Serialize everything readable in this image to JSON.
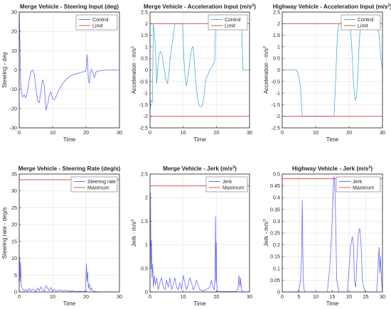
{
  "chart_data": [
    {
      "type": "line",
      "title": "Merge Vehicle - Steering Input (deg)",
      "xlabel": "Time",
      "ylabel": "Steering - deg",
      "xlim": [
        0,
        30
      ],
      "ylim": [
        -30,
        30
      ],
      "xticks": [
        0,
        10,
        20,
        30
      ],
      "yticks": [
        -30,
        -20,
        -10,
        0,
        10,
        20,
        30
      ],
      "grid": true,
      "legend": "top-right",
      "series": [
        {
          "name": "Control",
          "color": "#6a6aff",
          "x": [
            0,
            0.05,
            0.2,
            0.4,
            0.7,
            1.0,
            1.5,
            2.0,
            2.5,
            3.0,
            3.5,
            4.0,
            4.5,
            5.0,
            5.5,
            6.0,
            6.5,
            7.0,
            7.5,
            8.0,
            8.5,
            9.0,
            9.5,
            10.0,
            10.5,
            11.0,
            12.0,
            13.0,
            14.0,
            15.0,
            16.0,
            17.0,
            18.0,
            19.0,
            19.8,
            20.1,
            20.3,
            20.5,
            20.7,
            21.0,
            21.3,
            21.6,
            22.0,
            22.5,
            23.0,
            24.0,
            26.0,
            28.0,
            30.0
          ],
          "y": [
            30,
            29,
            15,
            -5,
            -12,
            -14,
            -13,
            -14.5,
            -11,
            -5,
            -1,
            0,
            -2,
            -9,
            -16,
            -17,
            -11,
            -5,
            -8,
            -21,
            -18,
            -13,
            -11.5,
            -15,
            -15.5,
            -14,
            -10,
            -7,
            -5,
            -3.5,
            -2.5,
            -2,
            -1.5,
            -1,
            -0.7,
            1,
            8,
            3,
            -5,
            -7,
            -1,
            0.3,
            -1,
            -4,
            -1,
            -0.4,
            -0.1,
            0,
            0
          ]
        },
        {
          "name": "Limit",
          "color": "#e05050",
          "x": [
            0,
            30
          ],
          "y": [
            30,
            30
          ]
        },
        {
          "name": "",
          "color": "#e05050",
          "x": [
            0,
            30
          ],
          "y": [
            -30,
            -30
          ]
        }
      ]
    },
    {
      "type": "line",
      "title": "Merge Vehicle - Acceleration Input (m/s",
      "title_sup": "2",
      "title_end": ")",
      "xlabel": "Time",
      "ylabel": "Acceleration - m/s",
      "ylabel_sup": "2",
      "xlim": [
        0,
        30
      ],
      "ylim": [
        -2.5,
        2.5
      ],
      "xticks": [
        0,
        10,
        20,
        30
      ],
      "yticks": [
        -2.5,
        -2,
        -1.5,
        -1,
        -0.5,
        0,
        0.5,
        1,
        1.5,
        2,
        2.5
      ],
      "grid": true,
      "legend": "top-right",
      "series": [
        {
          "name": "Control",
          "color": "#4aaed6",
          "x": [
            0,
            0.3,
            0.7,
            1.0,
            1.3,
            1.6,
            2.0,
            2.4,
            2.8,
            3.2,
            3.7,
            4.3,
            4.8,
            5.3,
            5.8,
            6.2,
            6.8,
            7.5,
            8.2,
            9.0,
            9.8,
            10.2,
            10.6,
            11.0,
            11.5,
            12.0,
            12.5,
            13.0,
            13.4,
            13.8,
            14.3,
            14.8,
            15.3,
            15.7,
            16.1,
            16.5,
            17.0,
            17.5,
            18.0,
            18.5,
            19.0,
            19.5,
            19.8,
            20.1,
            20.4,
            20.8,
            21.2,
            21.6,
            22.0,
            22.5,
            23.0,
            24.0,
            25.0,
            26.0,
            26.5,
            27.0,
            27.6,
            28.0,
            28.5,
            29.0,
            30.0
          ],
          "y": [
            -1.75,
            -1.3,
            -1.4,
            2.0,
            1.6,
            1.0,
            -0.6,
            0.2,
            0.7,
            0.8,
            0.6,
            0.0,
            -0.4,
            -0.6,
            0.0,
            0.7,
            1.2,
            2.0,
            2.0,
            2.0,
            2.0,
            0.5,
            -0.3,
            -0.7,
            -0.2,
            0.4,
            0.9,
            1.0,
            0.3,
            -0.5,
            -1.2,
            -1.55,
            -1.6,
            -1.55,
            -1.3,
            -0.8,
            -0.3,
            -0.2,
            0.0,
            0.1,
            0.2,
            0.4,
            2.0,
            2.0,
            2.0,
            2.0,
            2.0,
            2.0,
            2.0,
            2.0,
            2.0,
            2.0,
            2.0,
            2.0,
            2.0,
            2.0,
            2.0,
            0.0,
            0.0,
            0.0,
            0.0
          ]
        },
        {
          "name": "Limit",
          "color": "#e05050",
          "x": [
            0,
            30
          ],
          "y": [
            2,
            2
          ]
        },
        {
          "name": "",
          "color": "#e05050",
          "x": [
            0,
            30
          ],
          "y": [
            -2,
            -2
          ]
        }
      ]
    },
    {
      "type": "line",
      "title": "Highway Vehicle - Acceleration Input (m/s",
      "title_sup": "2",
      "title_end": ")",
      "xlabel": "Time",
      "ylabel": "Acceleration - m/s",
      "ylabel_sup": "2",
      "xlim": [
        0,
        30
      ],
      "ylim": [
        -2.5,
        2.5
      ],
      "xticks": [
        0,
        10,
        20,
        30
      ],
      "yticks": [
        -2.5,
        -2,
        -1.5,
        -1,
        -0.5,
        0,
        0.5,
        1,
        1.5,
        2,
        2.5
      ],
      "grid": true,
      "legend": "top-right",
      "series": [
        {
          "name": "Control",
          "color": "#4aaed6",
          "x": [
            0,
            4.0,
            4.5,
            5.0,
            5.5,
            6.0,
            6.5,
            15.5,
            16.0,
            16.5,
            17.0,
            18.5,
            19.5,
            20.3,
            20.8,
            21.3,
            21.8,
            22.2,
            22.6,
            23.0,
            23.4,
            24.0,
            26.0,
            26.5,
            27.0,
            28.0,
            28.5,
            29.0,
            29.5,
            30.0
          ],
          "y": [
            0.0,
            0.0,
            -0.05,
            -0.3,
            -0.8,
            -2.0,
            -2.0,
            -2.0,
            -0.4,
            1.5,
            2.0,
            2.0,
            2.0,
            2.0,
            1.0,
            -0.5,
            -1.3,
            -1.2,
            -0.3,
            1.0,
            2.0,
            2.0,
            2.0,
            2.0,
            2.0,
            2.0,
            2.0,
            1.5,
            0.5,
            0.0
          ]
        },
        {
          "name": "Limit",
          "color": "#e05050",
          "x": [
            0,
            30
          ],
          "y": [
            2,
            2
          ]
        },
        {
          "name": "",
          "color": "#e05050",
          "x": [
            0,
            30
          ],
          "y": [
            -2,
            -2
          ]
        }
      ]
    },
    {
      "type": "line",
      "title": "Merge Vehicle - Steering Rate (deg/s)",
      "xlabel": "Time",
      "ylabel": "Steering rate - deg/s",
      "xlim": [
        0,
        30
      ],
      "ylim": [
        0,
        35
      ],
      "xticks": [
        0,
        10,
        20,
        30
      ],
      "yticks": [
        0,
        5,
        10,
        15,
        20,
        25,
        30,
        35
      ],
      "grid": true,
      "legend": "top-right",
      "series": [
        {
          "name": "Steering rate",
          "color": "#6a6aff",
          "x": [
            0,
            0.1,
            0.25,
            0.4,
            0.6,
            0.9,
            1.2,
            1.6,
            2.0,
            2.5,
            3.0,
            3.5,
            4.0,
            4.5,
            5.0,
            5.5,
            6.0,
            6.5,
            7.0,
            7.5,
            8.0,
            8.5,
            9.0,
            9.5,
            10.0,
            10.5,
            11.0,
            12.0,
            13.0,
            14.0,
            15.0,
            16.0,
            17.0,
            18.0,
            19.0,
            19.8,
            20.1,
            20.3,
            20.5,
            20.7,
            21.0,
            21.3,
            21.6,
            22.0,
            22.5,
            23.0,
            24.0,
            26.0,
            28.0,
            30.0
          ],
          "y": [
            0,
            10.5,
            3,
            9,
            2,
            1,
            0.8,
            0.3,
            0.8,
            0.2,
            1.0,
            0.3,
            0.8,
            0.6,
            0.2,
            1.2,
            0.4,
            1.5,
            0.6,
            0.2,
            1.8,
            1.2,
            0.4,
            1.3,
            0.3,
            0.8,
            0.3,
            0.6,
            0.3,
            0.5,
            0.2,
            0.3,
            0.1,
            0.2,
            0.1,
            0.2,
            8.5,
            3,
            6,
            1,
            2.5,
            0.4,
            1.2,
            0.3,
            0.2,
            0.1,
            0.05,
            0.02,
            0.01,
            0
          ]
        },
        {
          "name": "Maximum",
          "color": "#e05050",
          "x": [
            0,
            30
          ],
          "y": [
            33.3,
            33.3
          ]
        }
      ]
    },
    {
      "type": "line",
      "title": "Merge Vehicle - Jerk (m/s",
      "title_sup": "3",
      "title_end": ")",
      "xlabel": "Time",
      "ylabel": "Jerk - m/s",
      "ylabel_sup": "3",
      "xlim": [
        0,
        30
      ],
      "ylim": [
        0,
        2.5
      ],
      "xticks": [
        0,
        10,
        20,
        30
      ],
      "yticks": [
        0,
        0.5,
        1,
        1.5,
        2,
        2.5
      ],
      "grid": true,
      "legend": "top-right",
      "series": [
        {
          "name": "Jerk",
          "color": "#6a6aff",
          "x": [
            0,
            0.15,
            0.3,
            0.45,
            0.6,
            0.8,
            1.0,
            1.3,
            1.6,
            2.0,
            2.5,
            3.0,
            3.5,
            4.0,
            4.5,
            5.0,
            5.5,
            6.0,
            6.5,
            7.0,
            7.5,
            8.0,
            8.5,
            9.0,
            9.5,
            10.0,
            10.5,
            11.0,
            11.5,
            12.0,
            12.5,
            13.0,
            13.5,
            14.0,
            14.5,
            15.0,
            16.0,
            17.0,
            18.0,
            18.5,
            19.0,
            19.4,
            19.6,
            19.75,
            19.9,
            20.0,
            20.1,
            20.3,
            20.6,
            21.0,
            22.0,
            23.0,
            24.0,
            25.0,
            26.0,
            26.5,
            26.8,
            27.1,
            27.3,
            27.6,
            28.0,
            29.0,
            30.0
          ],
          "y": [
            0,
            2.1,
            0.5,
            1.1,
            0.3,
            0.6,
            0.1,
            0.35,
            0.15,
            0.3,
            0.05,
            0.2,
            0.3,
            0.1,
            0.05,
            0.25,
            0.1,
            0.3,
            0.05,
            0.15,
            0.3,
            0.1,
            0.05,
            0.2,
            0.05,
            0.35,
            0.2,
            0.05,
            0.15,
            0.3,
            0.2,
            0.05,
            0.1,
            0.25,
            0.15,
            0.05,
            0.02,
            0.05,
            0.1,
            0.25,
            0.1,
            0.05,
            0.3,
            1.6,
            0.2,
            1.05,
            0.2,
            0.02,
            0.01,
            0.01,
            0.01,
            0.01,
            0.01,
            0.01,
            0.01,
            0.05,
            0.35,
            0.1,
            0.3,
            0.02,
            0.01,
            0.0,
            0.0
          ]
        },
        {
          "name": "Maximum",
          "color": "#e05050",
          "x": [
            0,
            30
          ],
          "y": [
            2.25,
            2.25
          ]
        }
      ]
    },
    {
      "type": "line",
      "title": "Highway Vehicle - Jerk (m/s",
      "title_sup": "3",
      "title_end": ")",
      "xlabel": "Time",
      "ylabel": "Jerk - m/s",
      "ylabel_sup": "3",
      "xlim": [
        0,
        30
      ],
      "ylim": [
        0,
        0.5
      ],
      "xticks": [
        0,
        5,
        10,
        15,
        20,
        25,
        30
      ],
      "yticks": [
        0,
        0.05,
        0.1,
        0.15,
        0.2,
        0.25,
        0.3,
        0.35,
        0.4,
        0.45,
        0.5
      ],
      "grid": true,
      "legend": "top-right",
      "series": [
        {
          "name": "Jerk",
          "color": "#6a6aff",
          "x": [
            0,
            4.5,
            5.0,
            5.5,
            5.8,
            6.0,
            6.15,
            6.3,
            6.5,
            7.0,
            13.5,
            14.2,
            14.8,
            15.2,
            15.5,
            15.7,
            16.0,
            16.3,
            17.0,
            19.5,
            20.0,
            20.5,
            21.0,
            21.3,
            21.6,
            22.0,
            22.4,
            22.8,
            23.2,
            23.6,
            24.0,
            24.4,
            24.8,
            28.2,
            28.5,
            28.8,
            29.0,
            29.2,
            29.4,
            29.7,
            30.0
          ],
          "y": [
            0,
            0,
            0.01,
            0.05,
            0.15,
            0.39,
            0.2,
            0.05,
            0.01,
            0,
            0,
            0.1,
            0.25,
            0.4,
            0.49,
            0.47,
            0.3,
            0.05,
            0,
            0,
            0.1,
            0.2,
            0.235,
            0.2,
            0.05,
            0.02,
            0.15,
            0.25,
            0.27,
            0.2,
            0.05,
            0.02,
            0,
            0,
            0.05,
            0.15,
            0.19,
            0.08,
            0.15,
            0.05,
            0
          ]
        },
        {
          "name": "Maximum",
          "color": "#e05050",
          "x": [
            0,
            30
          ],
          "y": [
            0.48,
            0.48
          ]
        }
      ]
    }
  ]
}
